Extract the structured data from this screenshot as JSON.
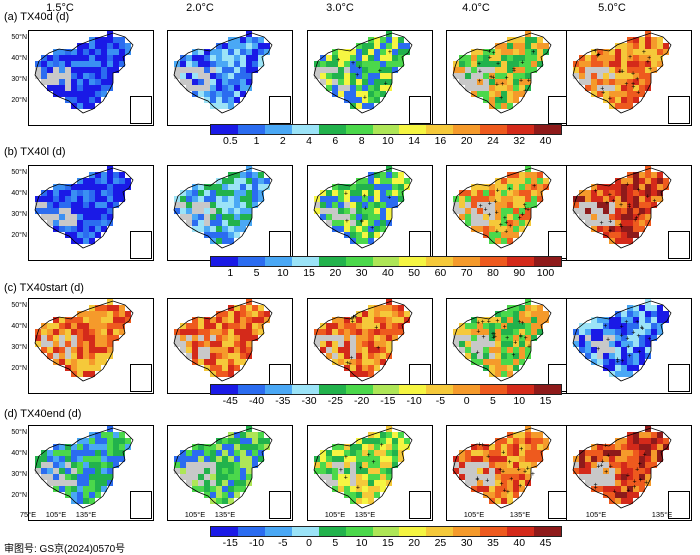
{
  "columns": [
    "1.5°C",
    "2.0°C",
    "3.0°C",
    "4.0°C",
    "5.0°C"
  ],
  "rows": [
    {
      "label": "(a) TX40d (d)",
      "colorbar": {
        "colors": [
          "#1a1ae6",
          "#2b6cf0",
          "#4aa8f5",
          "#9be3f7",
          "#22b24c",
          "#4bd84b",
          "#aee657",
          "#f5f542",
          "#f5c93a",
          "#f59a2b",
          "#ee5a1e",
          "#d42a1a",
          "#8e1a1a"
        ],
        "labels": [
          "0.5",
          "1",
          "2",
          "4",
          "6",
          "8",
          "10",
          "14",
          "16",
          "20",
          "24",
          "32",
          "40"
        ]
      },
      "panel_palettes": [
        [
          "#1a1ae6",
          "#2b6cf0",
          "#3a8ff3",
          "#1a1ae6"
        ],
        [
          "#2b6cf0",
          "#4aa8f5",
          "#1a1ae6",
          "#9be3f7"
        ],
        [
          "#22b24c",
          "#4bd84b",
          "#2b6cf0",
          "#f5f542"
        ],
        [
          "#f5c93a",
          "#4bd84b",
          "#f59a2b",
          "#22b24c"
        ],
        [
          "#ee5a1e",
          "#d42a1a",
          "#f59a2b",
          "#f5c93a"
        ]
      ]
    },
    {
      "label": "(b) TX40l (d)",
      "colorbar": {
        "colors": [
          "#1a1ae6",
          "#2b6cf0",
          "#4aa8f5",
          "#9be3f7",
          "#22b24c",
          "#4bd84b",
          "#aee657",
          "#f5f542",
          "#f5c93a",
          "#f59a2b",
          "#ee5a1e",
          "#d42a1a",
          "#8e1a1a"
        ],
        "labels": [
          "1",
          "5",
          "10",
          "15",
          "20",
          "30",
          "40",
          "50",
          "60",
          "70",
          "80",
          "90",
          "100"
        ]
      },
      "panel_palettes": [
        [
          "#1a1ae6",
          "#2b6cf0",
          "#3a8ff3",
          "#1a1ae6"
        ],
        [
          "#2b6cf0",
          "#4aa8f5",
          "#22b24c",
          "#9be3f7"
        ],
        [
          "#4bd84b",
          "#2b6cf0",
          "#f5f542",
          "#22b24c"
        ],
        [
          "#f5c93a",
          "#ee5a1e",
          "#4bd84b",
          "#f59a2b"
        ],
        [
          "#ee5a1e",
          "#d42a1a",
          "#8e1a1a",
          "#f59a2b"
        ]
      ]
    },
    {
      "label": "(c) TX40start (d)",
      "colorbar": {
        "colors": [
          "#1a1ae6",
          "#2b6cf0",
          "#4aa8f5",
          "#9be3f7",
          "#22b24c",
          "#4bd84b",
          "#aee657",
          "#f5f542",
          "#f5c93a",
          "#f59a2b",
          "#ee5a1e",
          "#d42a1a",
          "#8e1a1a"
        ],
        "labels": [
          "-45",
          "-40",
          "-35",
          "-30",
          "-25",
          "-20",
          "-15",
          "-10",
          "-5",
          "0",
          "5",
          "10",
          "15"
        ]
      },
      "panel_palettes": [
        [
          "#f59a2b",
          "#ee5a1e",
          "#d42a1a",
          "#f5c93a"
        ],
        [
          "#f59a2b",
          "#ee5a1e",
          "#d42a1a",
          "#f5c93a"
        ],
        [
          "#f59a2b",
          "#ee5a1e",
          "#f5c93a",
          "#d42a1a"
        ],
        [
          "#f5c93a",
          "#4bd84b",
          "#f59a2b",
          "#22b24c"
        ],
        [
          "#2b6cf0",
          "#4aa8f5",
          "#1a1ae6",
          "#9be3f7"
        ]
      ]
    },
    {
      "label": "(d) TX40end (d)",
      "colorbar": {
        "colors": [
          "#1a1ae6",
          "#2b6cf0",
          "#4aa8f5",
          "#9be3f7",
          "#22b24c",
          "#4bd84b",
          "#aee657",
          "#f5f542",
          "#f5c93a",
          "#f59a2b",
          "#ee5a1e",
          "#d42a1a",
          "#8e1a1a"
        ],
        "labels": [
          "-15",
          "-10",
          "-5",
          "0",
          "5",
          "10",
          "15",
          "20",
          "25",
          "30",
          "35",
          "40",
          "45"
        ]
      },
      "panel_palettes": [
        [
          "#22b24c",
          "#4bd84b",
          "#2b6cf0",
          "#4aa8f5"
        ],
        [
          "#22b24c",
          "#4bd84b",
          "#aee657",
          "#2b6cf0"
        ],
        [
          "#4bd84b",
          "#f5f542",
          "#f5c93a",
          "#22b24c"
        ],
        [
          "#f59a2b",
          "#ee5a1e",
          "#f5c93a",
          "#d42a1a"
        ],
        [
          "#ee5a1e",
          "#d42a1a",
          "#f59a2b",
          "#8e1a1a"
        ]
      ]
    }
  ],
  "lat_ticks": [
    "50°N",
    "40°N",
    "30°N",
    "20°N"
  ],
  "lon_ticks": [
    "75°E",
    "105°E",
    "135°E"
  ],
  "footer": "审图号: GS京(2024)0570号",
  "chart_data": {
    "type": "heatmap",
    "title": "",
    "panels_x": [
      "1.5°C",
      "2.0°C",
      "3.0°C",
      "4.0°C",
      "5.0°C"
    ],
    "panels_y": [
      "(a) TX40d (d)",
      "(b) TX40l (d)",
      "(c) TX40start (d)",
      "(d) TX40end (d)"
    ],
    "xlabel": "",
    "ylabel": "",
    "x_ticks": [
      "75°E",
      "105°E",
      "135°E"
    ],
    "y_ticks": [
      "50°N",
      "40°N",
      "30°N",
      "20°N"
    ],
    "colorbar_levels": {
      "TX40d": [
        0.5,
        1,
        2,
        4,
        6,
        8,
        10,
        14,
        16,
        20,
        24,
        32,
        40
      ],
      "TX40l": [
        1,
        5,
        10,
        15,
        20,
        30,
        40,
        50,
        60,
        70,
        80,
        90,
        100
      ],
      "TX40start": [
        -45,
        -40,
        -35,
        -30,
        -25,
        -20,
        -15,
        -10,
        -5,
        0,
        5,
        10,
        15
      ],
      "TX40end": [
        -15,
        -10,
        -5,
        0,
        5,
        10,
        15,
        20,
        25,
        30,
        35,
        40,
        45
      ]
    }
  }
}
